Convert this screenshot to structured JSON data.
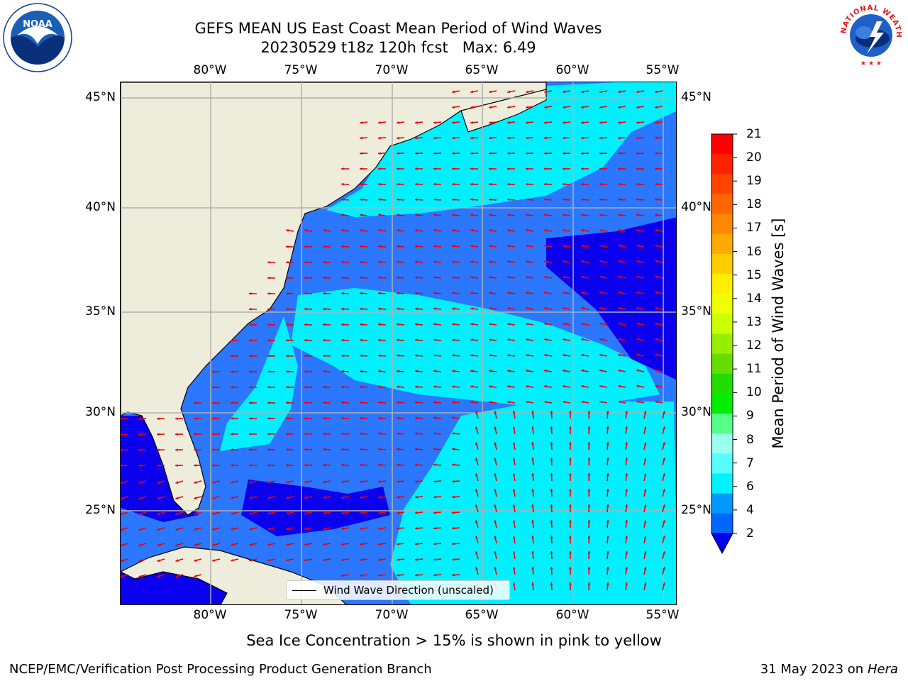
{
  "header": {
    "title_line1": "GEFS MEAN US East Coast Mean Period of Wind Waves",
    "title_line2": "20230529 t18z 120h fcst   Max: 6.49"
  },
  "logos": {
    "left": "NOAA",
    "left_ring": "NATIONAL OCEANIC AND ATMOSPHERIC ADMINISTRATION · U.S. DEPARTMENT OF COMMERCE",
    "right_ring": "NATIONAL WEATHER SERVICE"
  },
  "axes": {
    "lon_ticks": [
      "80°W",
      "75°W",
      "70°W",
      "65°W",
      "60°W",
      "55°W"
    ],
    "lat_ticks": [
      "45°N",
      "40°N",
      "35°N",
      "30°N",
      "25°N"
    ]
  },
  "legend": {
    "label": "Wind Wave Direction (unscaled)"
  },
  "colorbar": {
    "label": "Mean Period of Wind Waves [s]",
    "ticks": [
      "21",
      "20",
      "19",
      "18",
      "17",
      "16",
      "15",
      "14",
      "13",
      "12",
      "11",
      "10",
      "9",
      "8",
      "7",
      "6",
      "4",
      "2"
    ],
    "colors": [
      "#ff0000",
      "#ff2200",
      "#ff4400",
      "#ff6600",
      "#ff8800",
      "#ffaa00",
      "#ffcc00",
      "#ffee00",
      "#eeff00",
      "#ccff00",
      "#99ee00",
      "#66dd00",
      "#22dd00",
      "#00ee00",
      "#55ff88",
      "#99ffee",
      "#55ffff",
      "#00f2ff",
      "#0099ff",
      "#0066ff"
    ],
    "extend_color": "#0000ee"
  },
  "map_colors": {
    "land": "#eeeddc",
    "deep": "#0a00ee",
    "mid": "#2b77ff",
    "light": "#00f0ff",
    "arrow": "#ee0000",
    "grid": "#b0b0b0"
  },
  "caption": "Sea Ice Concentration > 15% is shown in pink to yellow",
  "footer": {
    "left": "NCEP/EMC/Verification Post Processing Product Generation Branch",
    "right_date": "31 May 2023 on",
    "right_host": "Hera"
  }
}
